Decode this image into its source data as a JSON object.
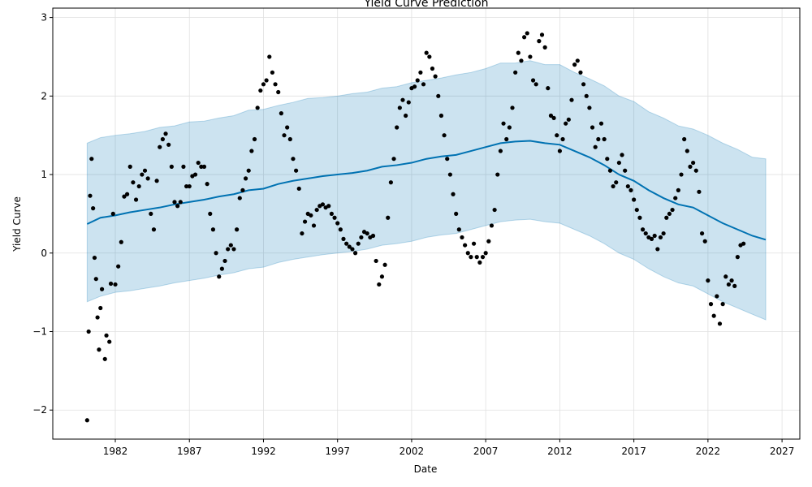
{
  "chart_data": {
    "type": "prophet-forecast",
    "title": "Yield Curve Prediction",
    "x_label": "Date",
    "y_label": "Yield Curve",
    "xlim": [
      1977.78,
      2028.2
    ],
    "ylim": [
      -2.37,
      3.12
    ],
    "xticks": [
      1982,
      1987,
      1992,
      1997,
      2002,
      2007,
      2012,
      2017,
      2022,
      2027
    ],
    "yticks": [
      {
        "value": -2,
        "label": "−2"
      },
      {
        "value": -1,
        "label": "−1"
      },
      0,
      1,
      2,
      3
    ],
    "grid": true,
    "point_color": "#000000",
    "line_color": "#0072B2",
    "band_color": "#0072B2",
    "observed": {
      "x": [
        1980.1,
        1980.2,
        1980.3,
        1980.4,
        1980.5,
        1980.6,
        1980.7,
        1980.8,
        1980.9,
        1981.0,
        1981.1,
        1981.3,
        1981.4,
        1981.6,
        1981.7,
        1981.85,
        1982.0,
        1982.2,
        1982.4,
        1982.6,
        1982.8,
        1983.0,
        1983.2,
        1983.4,
        1983.6,
        1983.8,
        1984.0,
        1984.2,
        1984.4,
        1984.6,
        1984.8,
        1985.0,
        1985.2,
        1985.4,
        1985.6,
        1985.8,
        1986.0,
        1986.2,
        1986.4,
        1986.6,
        1986.8,
        1987.0,
        1987.2,
        1987.4,
        1987.6,
        1987.8,
        1988.0,
        1988.2,
        1988.4,
        1988.6,
        1988.8,
        1989.0,
        1989.2,
        1989.4,
        1989.6,
        1989.8,
        1990.0,
        1990.2,
        1990.4,
        1990.6,
        1990.8,
        1991.0,
        1991.2,
        1991.4,
        1991.6,
        1991.8,
        1992.0,
        1992.2,
        1992.4,
        1992.6,
        1992.8,
        1993.0,
        1993.2,
        1993.4,
        1993.6,
        1993.8,
        1994.0,
        1994.2,
        1994.4,
        1994.6,
        1994.8,
        1995.0,
        1995.2,
        1995.4,
        1995.6,
        1995.8,
        1996.0,
        1996.2,
        1996.4,
        1996.6,
        1996.8,
        1997.0,
        1997.2,
        1997.4,
        1997.6,
        1997.8,
        1998.0,
        1998.2,
        1998.4,
        1998.6,
        1998.8,
        1999.0,
        1999.2,
        1999.4,
        1999.6,
        1999.8,
        2000.0,
        2000.2,
        2000.4,
        2000.6,
        2000.8,
        2001.0,
        2001.2,
        2001.4,
        2001.6,
        2001.8,
        2002.0,
        2002.2,
        2002.4,
        2002.6,
        2002.8,
        2003.0,
        2003.2,
        2003.4,
        2003.6,
        2003.8,
        2004.0,
        2004.2,
        2004.4,
        2004.6,
        2004.8,
        2005.0,
        2005.2,
        2005.4,
        2005.6,
        2005.8,
        2006.0,
        2006.2,
        2006.4,
        2006.6,
        2006.8,
        2007.0,
        2007.2,
        2007.4,
        2007.6,
        2007.8,
        2008.0,
        2008.2,
        2008.4,
        2008.6,
        2008.8,
        2009.0,
        2009.2,
        2009.4,
        2009.6,
        2009.8,
        2010.0,
        2010.2,
        2010.4,
        2010.6,
        2010.8,
        2011.0,
        2011.2,
        2011.4,
        2011.6,
        2011.8,
        2012.0,
        2012.2,
        2012.4,
        2012.6,
        2012.8,
        2013.0,
        2013.2,
        2013.4,
        2013.6,
        2013.8,
        2014.0,
        2014.2,
        2014.4,
        2014.6,
        2014.8,
        2015.0,
        2015.2,
        2015.4,
        2015.6,
        2015.8,
        2016.0,
        2016.2,
        2016.4,
        2016.6,
        2016.8,
        2017.0,
        2017.2,
        2017.4,
        2017.6,
        2017.8,
        2018.0,
        2018.2,
        2018.4,
        2018.6,
        2018.8,
        2019.0,
        2019.2,
        2019.4,
        2019.6,
        2019.8,
        2020.0,
        2020.2,
        2020.4,
        2020.6,
        2020.8,
        2021.0,
        2021.2,
        2021.4,
        2021.6,
        2021.8,
        2022.0,
        2022.2,
        2022.4,
        2022.6,
        2022.8,
        2023.0,
        2023.2,
        2023.4,
        2023.6,
        2023.8,
        2024.0,
        2024.2,
        2024.4
      ],
      "values": [
        -2.13,
        -1.0,
        0.73,
        1.2,
        0.57,
        -0.06,
        -0.33,
        -0.82,
        -1.23,
        -0.7,
        -0.46,
        -1.35,
        -1.05,
        -1.13,
        -0.39,
        0.5,
        -0.4,
        -0.17,
        0.14,
        0.72,
        0.75,
        1.1,
        0.9,
        0.68,
        0.85,
        1.0,
        1.05,
        0.95,
        0.5,
        0.3,
        0.92,
        1.35,
        1.45,
        1.52,
        1.38,
        1.1,
        0.65,
        0.6,
        0.65,
        1.1,
        0.85,
        0.85,
        0.98,
        1.0,
        1.15,
        1.1,
        1.1,
        0.88,
        0.5,
        0.3,
        0.0,
        -0.3,
        -0.2,
        -0.1,
        0.05,
        0.1,
        0.05,
        0.3,
        0.7,
        0.8,
        0.95,
        1.05,
        1.3,
        1.45,
        1.85,
        2.07,
        2.15,
        2.2,
        2.5,
        2.3,
        2.15,
        2.05,
        1.78,
        1.5,
        1.6,
        1.45,
        1.2,
        1.05,
        0.82,
        0.25,
        0.4,
        0.5,
        0.48,
        0.35,
        0.55,
        0.6,
        0.62,
        0.58,
        0.6,
        0.5,
        0.45,
        0.38,
        0.3,
        0.18,
        0.12,
        0.08,
        0.05,
        0.0,
        0.12,
        0.2,
        0.27,
        0.25,
        0.2,
        0.22,
        -0.1,
        -0.4,
        -0.3,
        -0.15,
        0.45,
        0.9,
        1.2,
        1.6,
        1.85,
        1.95,
        1.75,
        1.92,
        2.1,
        2.12,
        2.2,
        2.3,
        2.15,
        2.55,
        2.5,
        2.35,
        2.25,
        2.0,
        1.75,
        1.5,
        1.2,
        1.0,
        0.75,
        0.5,
        0.3,
        0.2,
        0.1,
        0.0,
        -0.05,
        0.12,
        -0.05,
        -0.12,
        -0.05,
        0.0,
        0.15,
        0.35,
        0.55,
        1.0,
        1.3,
        1.65,
        1.45,
        1.6,
        1.85,
        2.3,
        2.55,
        2.45,
        2.75,
        2.8,
        2.5,
        2.2,
        2.15,
        2.7,
        2.78,
        2.62,
        2.1,
        1.75,
        1.72,
        1.5,
        1.3,
        1.45,
        1.65,
        1.7,
        1.95,
        2.4,
        2.45,
        2.3,
        2.15,
        2.0,
        1.85,
        1.6,
        1.35,
        1.45,
        1.65,
        1.45,
        1.2,
        1.05,
        0.85,
        0.9,
        1.15,
        1.25,
        1.05,
        0.85,
        0.8,
        0.68,
        0.55,
        0.45,
        0.3,
        0.25,
        0.2,
        0.18,
        0.22,
        0.05,
        0.2,
        0.25,
        0.45,
        0.5,
        0.55,
        0.7,
        0.8,
        1.0,
        1.45,
        1.3,
        1.1,
        1.15,
        1.05,
        0.78,
        0.25,
        0.15,
        -0.35,
        -0.65,
        -0.8,
        -0.55,
        -0.9,
        -0.65,
        -0.3,
        -0.4,
        -0.35,
        -0.42,
        -0.05,
        0.1,
        0.12
      ]
    },
    "forecast": {
      "x": [
        1980.1,
        1981,
        1982,
        1983,
        1984,
        1985,
        1986,
        1987,
        1988,
        1989,
        1990,
        1991,
        1992,
        1993,
        1994,
        1995,
        1996,
        1997,
        1998,
        1999,
        2000,
        2001,
        2002,
        2003,
        2004,
        2005,
        2006,
        2007,
        2008,
        2009,
        2010,
        2011,
        2012,
        2013,
        2014,
        2015,
        2016,
        2017,
        2018,
        2019,
        2020,
        2021,
        2022,
        2023,
        2024,
        2025,
        2025.9
      ],
      "values": [
        0.37,
        0.45,
        0.48,
        0.52,
        0.55,
        0.58,
        0.62,
        0.65,
        0.68,
        0.72,
        0.75,
        0.8,
        0.82,
        0.88,
        0.92,
        0.95,
        0.98,
        1.0,
        1.02,
        1.05,
        1.1,
        1.12,
        1.15,
        1.2,
        1.23,
        1.25,
        1.3,
        1.35,
        1.4,
        1.42,
        1.43,
        1.4,
        1.38,
        1.3,
        1.22,
        1.12,
        1.0,
        0.92,
        0.8,
        0.7,
        0.62,
        0.58,
        0.48,
        0.38,
        0.3,
        0.22,
        0.17
      ],
      "upper": [
        1.4,
        1.47,
        1.5,
        1.52,
        1.55,
        1.6,
        1.62,
        1.67,
        1.68,
        1.72,
        1.75,
        1.82,
        1.83,
        1.88,
        1.92,
        1.97,
        1.98,
        2.0,
        2.03,
        2.05,
        2.1,
        2.12,
        2.17,
        2.2,
        2.23,
        2.27,
        2.3,
        2.35,
        2.42,
        2.42,
        2.45,
        2.4,
        2.4,
        2.3,
        2.22,
        2.13,
        2.0,
        1.93,
        1.8,
        1.72,
        1.62,
        1.58,
        1.5,
        1.4,
        1.32,
        1.22,
        1.2
      ],
      "lower": [
        -0.62,
        -0.55,
        -0.5,
        -0.48,
        -0.45,
        -0.42,
        -0.38,
        -0.35,
        -0.32,
        -0.28,
        -0.25,
        -0.2,
        -0.18,
        -0.12,
        -0.08,
        -0.05,
        -0.02,
        0.0,
        0.02,
        0.05,
        0.1,
        0.12,
        0.15,
        0.2,
        0.23,
        0.25,
        0.3,
        0.35,
        0.4,
        0.42,
        0.43,
        0.4,
        0.38,
        0.3,
        0.22,
        0.12,
        0.0,
        -0.08,
        -0.2,
        -0.3,
        -0.38,
        -0.42,
        -0.52,
        -0.62,
        -0.7,
        -0.78,
        -0.85
      ]
    }
  }
}
